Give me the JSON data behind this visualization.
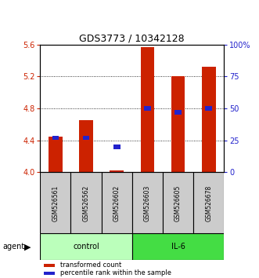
{
  "title": "GDS3773 / 10342128",
  "samples": [
    "GSM526561",
    "GSM526562",
    "GSM526602",
    "GSM526603",
    "GSM526605",
    "GSM526678"
  ],
  "red_values": [
    4.45,
    4.65,
    4.02,
    5.57,
    5.2,
    5.32
  ],
  "blue_percentiles": [
    27,
    27,
    20,
    50,
    47,
    50
  ],
  "ylim_left": [
    4.0,
    5.6
  ],
  "ylim_right": [
    0,
    100
  ],
  "yticks_left": [
    4.0,
    4.4,
    4.8,
    5.2,
    5.6
  ],
  "yticks_right": [
    0,
    25,
    50,
    75,
    100
  ],
  "bar_bottom": 4.0,
  "red_color": "#cc2200",
  "blue_color": "#2222cc",
  "control_color": "#bbffbb",
  "il6_color": "#44dd44",
  "sample_box_color": "#cccccc",
  "title_fontsize": 9,
  "tick_fontsize": 7,
  "sample_fontsize": 5.5,
  "group_fontsize": 7,
  "legend_fontsize": 6
}
